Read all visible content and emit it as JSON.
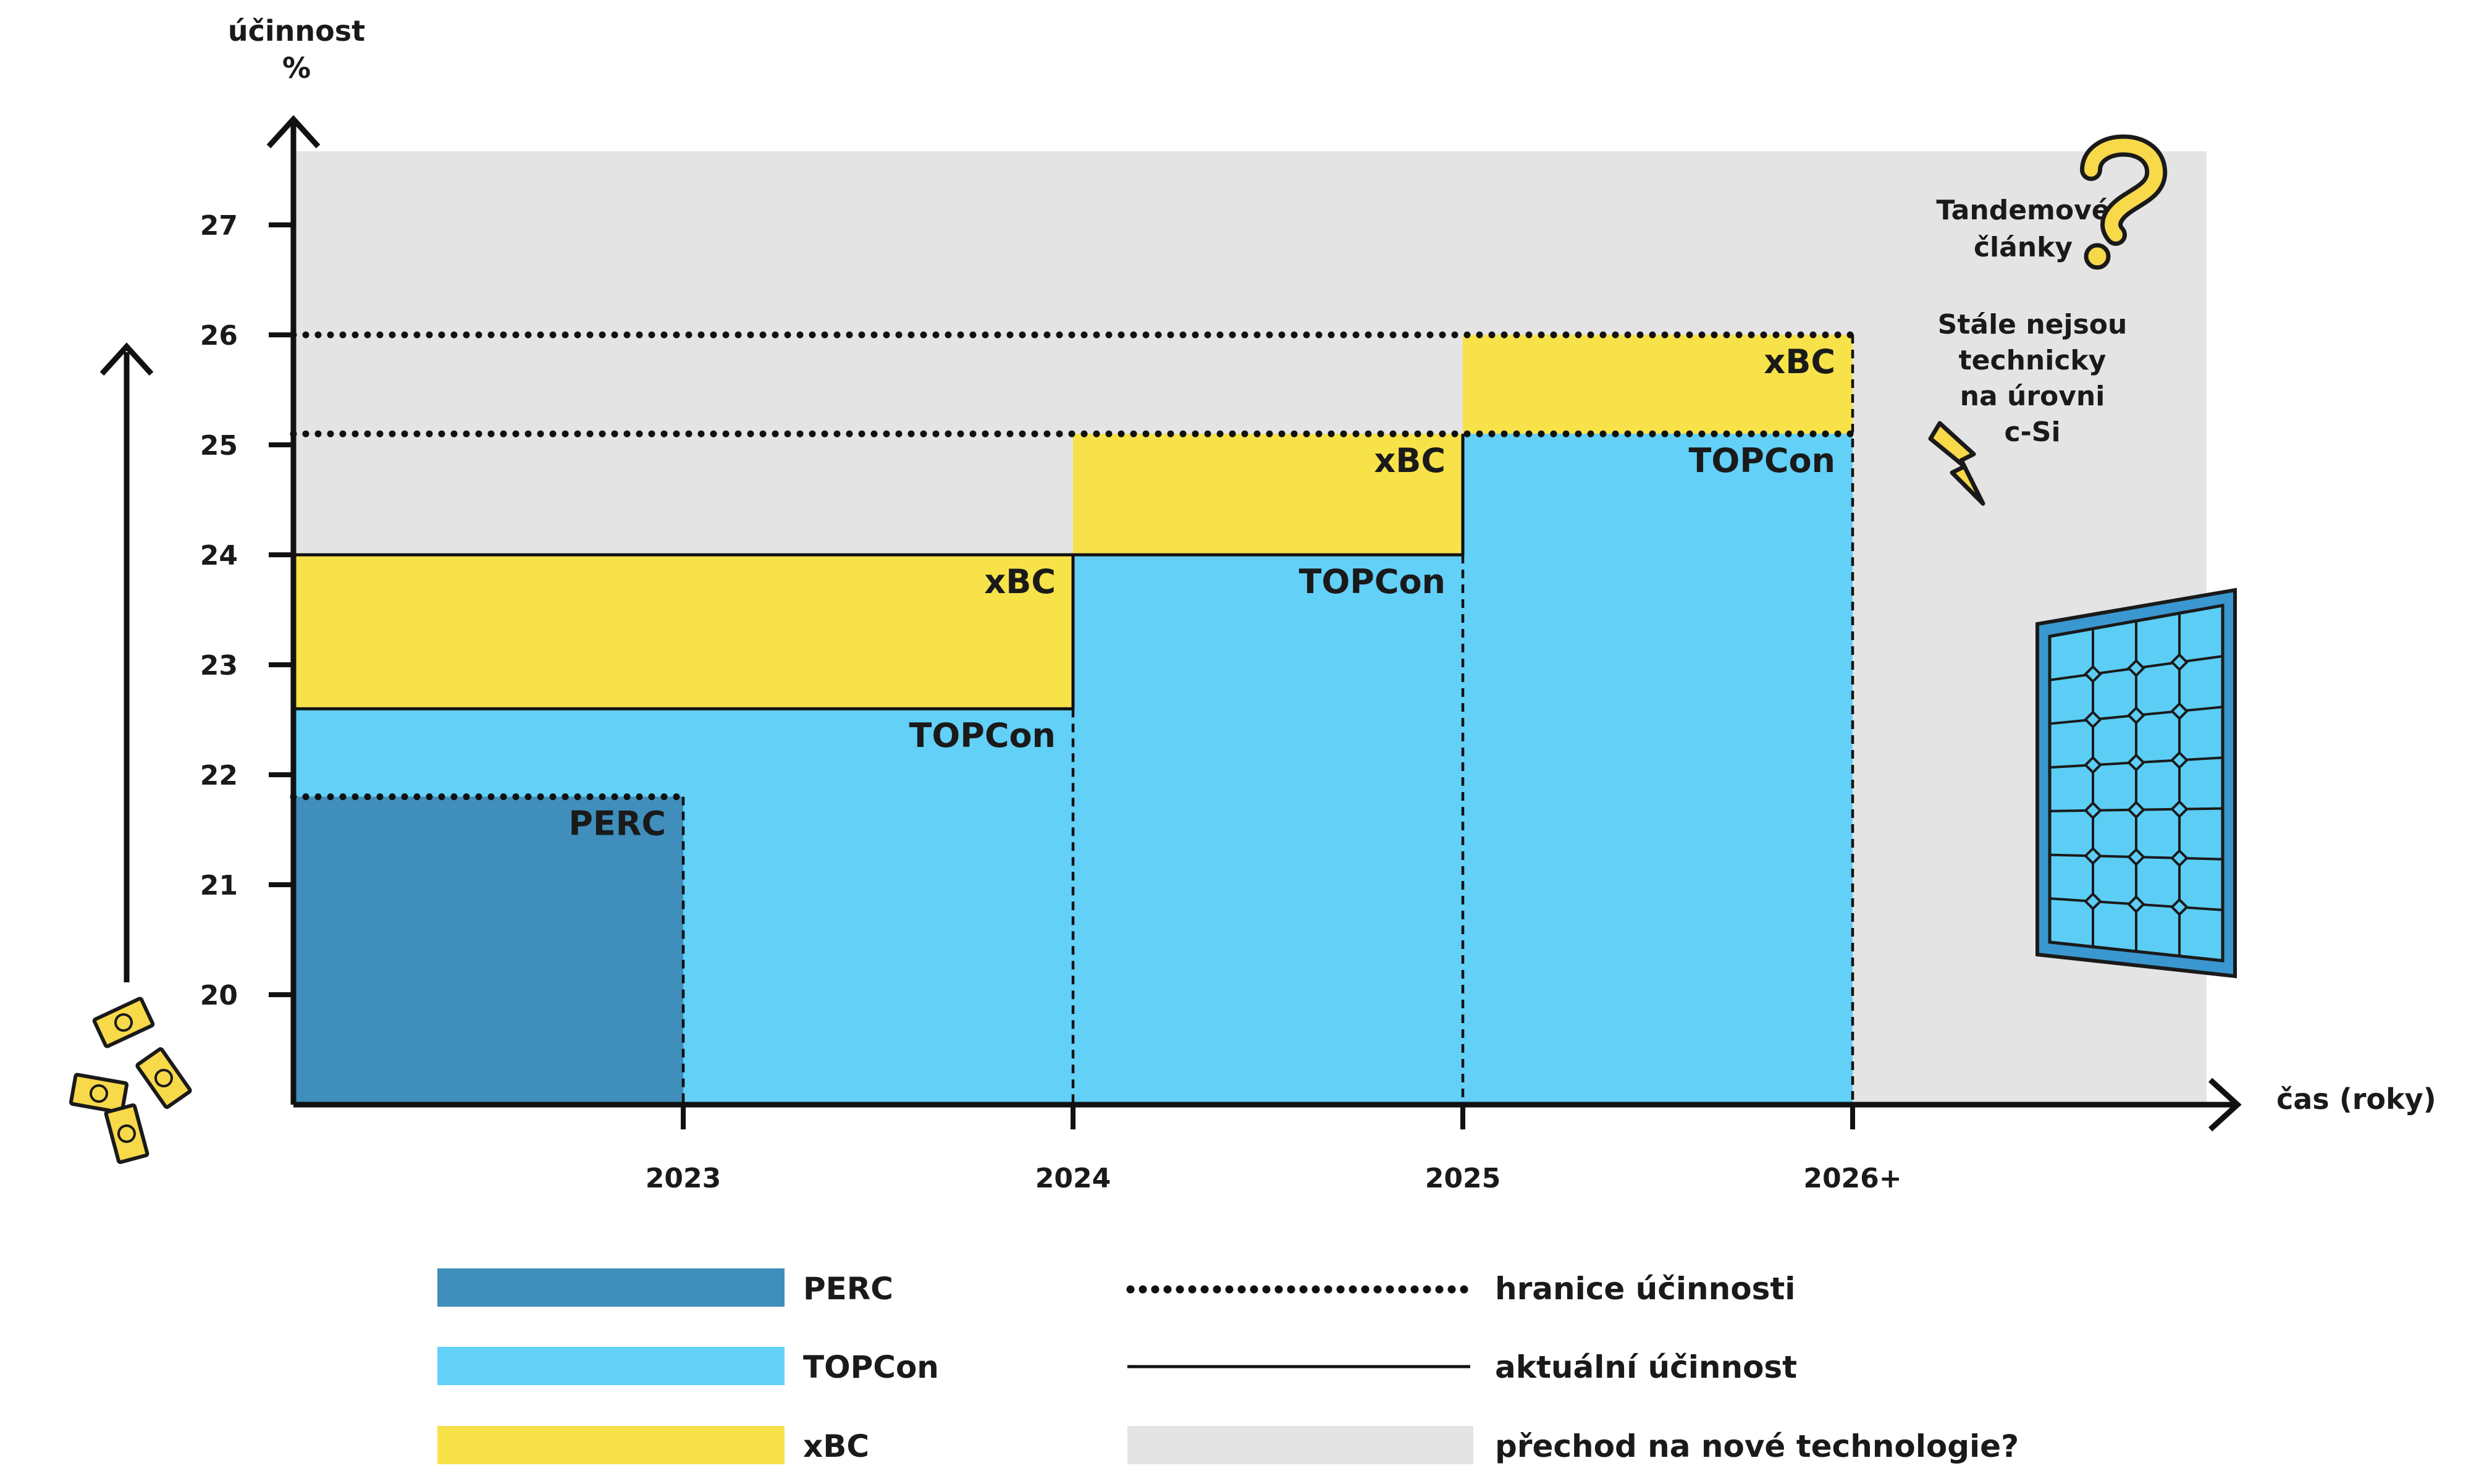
{
  "chart_data": {
    "type": "area",
    "title": "",
    "ylabel": "účinnost",
    "yunit": "%",
    "xlabel": "čas (roky)",
    "ylim": [
      19,
      27.7
    ],
    "yticks": [
      20,
      21,
      22,
      23,
      24,
      25,
      26,
      27
    ],
    "x_categories": [
      "2023",
      "2024",
      "2025",
      "2026+"
    ],
    "grid": false,
    "legend_placement": "bottom",
    "colors": {
      "PERC": "#3f8ebb",
      "TOPCon": "#63d0f8",
      "xBC": "#f8e24a",
      "transition": "#e4e4e4",
      "line": "#111111",
      "accent": "#f7d94a"
    },
    "series": [
      {
        "name": "PERC",
        "steps": [
          {
            "x_end_index": 0,
            "current": 21.8,
            "boundary": 21.8
          }
        ]
      },
      {
        "name": "TOPCon",
        "steps": [
          {
            "x_end_index": 1,
            "current": 22.6
          },
          {
            "x_end_index": 2,
            "current": 24.0
          },
          {
            "x_end_index": 3,
            "current": 25.1
          }
        ]
      },
      {
        "name": "xBC",
        "steps": [
          {
            "x_end_index": 1,
            "current": 24.0
          },
          {
            "x_end_index": 2,
            "current": 25.1
          },
          {
            "x_end_index": 3,
            "current": 26.0
          }
        ]
      }
    ],
    "efficiency_limits": [
      {
        "value": 21.8,
        "x_end_index": 0
      },
      {
        "value": 25.1,
        "x_end_index": 3
      },
      {
        "value": 26.0,
        "x_end_index": 3
      }
    ],
    "band_labels": [
      {
        "text": "PERC",
        "series": "PERC",
        "x_end_index": 0,
        "y": 21.8
      },
      {
        "text": "TOPCon",
        "series": "TOPCon",
        "x_end_index": 1,
        "y": 22.6
      },
      {
        "text": "xBC",
        "series": "xBC",
        "x_end_index": 1,
        "y": 24.0
      },
      {
        "text": "TOPCon",
        "series": "TOPCon",
        "x_end_index": 2,
        "y": 24.0
      },
      {
        "text": "xBC",
        "series": "xBC",
        "x_end_index": 2,
        "y": 25.1
      },
      {
        "text": "TOPCon",
        "series": "TOPCon",
        "x_end_index": 3,
        "y": 25.1
      },
      {
        "text": "xBC",
        "series": "xBC",
        "x_end_index": 3,
        "y": 26.0
      }
    ],
    "annotations": [
      {
        "id": "tandem",
        "lines": [
          "Tandemové",
          "články"
        ],
        "icon": "question-mark-icon"
      },
      {
        "id": "not-ready",
        "lines": [
          "Stále nejsou",
          "technicky",
          "na úrovni",
          "c-Si"
        ],
        "icon": "lightning-icon"
      }
    ],
    "decorations": [
      "solar-panel-icon",
      "euro-banknotes-icon",
      "cost-arrow-icon"
    ],
    "legend": [
      {
        "label": "PERC",
        "kind": "fill",
        "color": "#3f8ebb"
      },
      {
        "label": "hranice účinnosti",
        "kind": "dotted-line"
      },
      {
        "label": "TOPCon",
        "kind": "fill",
        "color": "#63d0f8"
      },
      {
        "label": "aktuální účinnost",
        "kind": "solid-line"
      },
      {
        "label": "xBC",
        "kind": "fill",
        "color": "#f8e24a"
      },
      {
        "label": "přechod na nové technologie?",
        "kind": "fill",
        "color": "#e4e4e4"
      }
    ]
  }
}
